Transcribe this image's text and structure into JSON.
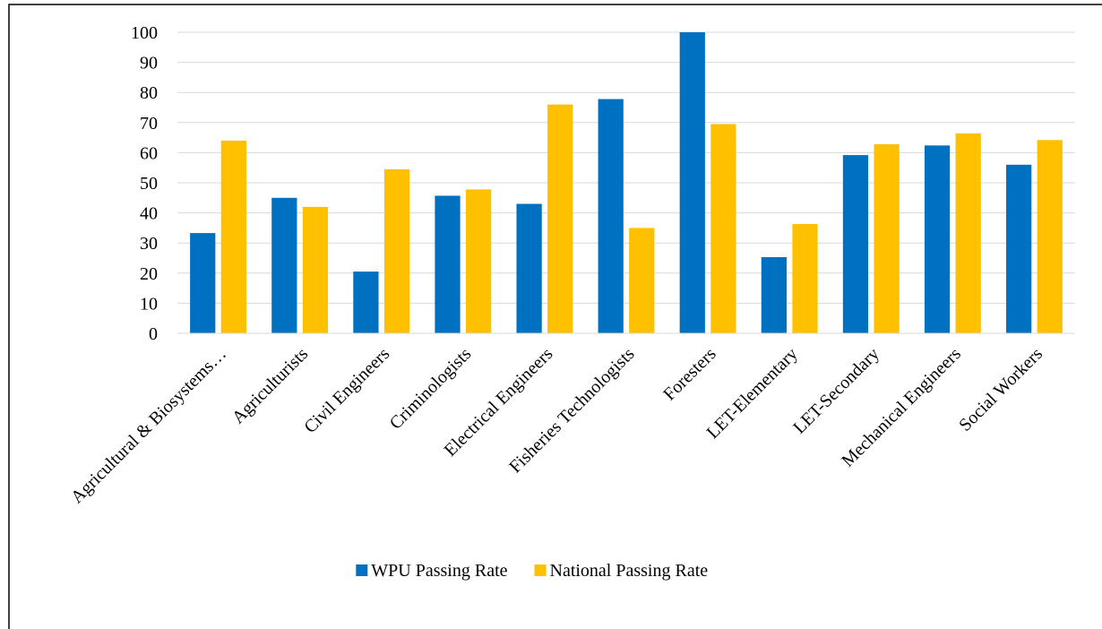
{
  "chart_data": {
    "type": "bar",
    "categories": [
      "Agricultural & Biosystems…",
      "Agriculturists",
      "Civil Engineers",
      "Criminologists",
      "Electrical Engineers",
      "Fisheries Technologists",
      "Foresters",
      "LET-Elementary",
      "LET-Secondary",
      "Mechanical Engineers",
      "Social Workers"
    ],
    "series": [
      {
        "name": "WPU Passing Rate",
        "color": "#0070c0",
        "values": [
          33.3,
          45,
          20.5,
          45.7,
          43,
          77.8,
          100,
          25.3,
          59.2,
          62.4,
          56
        ]
      },
      {
        "name": "National Passing Rate",
        "color": "#ffc000",
        "values": [
          64,
          42,
          54.5,
          47.8,
          76,
          35,
          69.5,
          36.3,
          62.8,
          66.4,
          64.2
        ]
      }
    ],
    "ylim": [
      0,
      100
    ],
    "yticks": [
      0,
      10,
      20,
      30,
      40,
      50,
      60,
      70,
      80,
      90,
      100
    ],
    "grid": true,
    "legend": "bottom"
  }
}
